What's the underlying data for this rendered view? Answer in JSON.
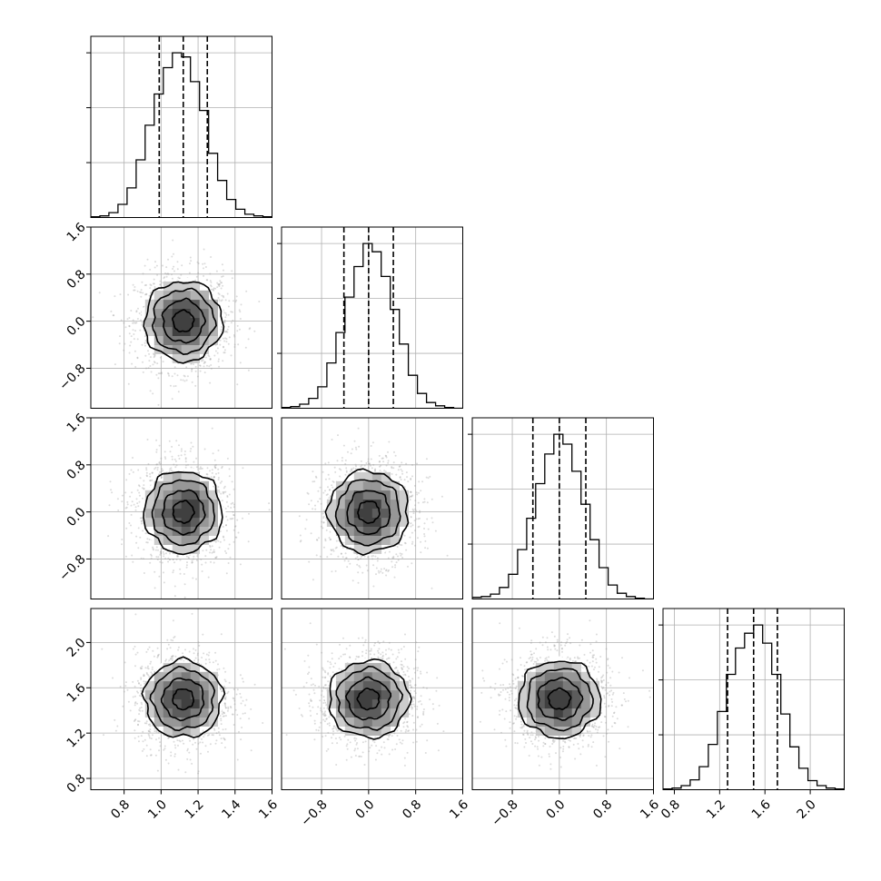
{
  "chart_data": {
    "type": "corner",
    "title": "",
    "parameters": [
      {
        "range": [
          0.62,
          1.6
        ],
        "ticks": [
          0.8,
          1.0,
          1.2,
          1.4,
          1.6
        ],
        "tick_labels": [
          "0.8",
          "1.0",
          "1.2",
          "1.4",
          "1.6"
        ],
        "quantiles": [
          0.99,
          1.12,
          1.25
        ],
        "mean": 1.12,
        "std": 0.13
      },
      {
        "range": [
          -1.48,
          1.6
        ],
        "ticks": [
          -0.8,
          0.0,
          0.8,
          1.6
        ],
        "tick_labels": [
          "−0.8",
          "0.0",
          "0.8",
          "1.6"
        ],
        "quantiles": [
          -0.42,
          0.0,
          0.42
        ],
        "mean": 0.0,
        "std": 0.42
      },
      {
        "range": [
          -1.48,
          1.6
        ],
        "ticks": [
          -0.8,
          0.0,
          0.8,
          1.6
        ],
        "tick_labels": [
          "−0.8",
          "0.0",
          "0.8",
          "1.6"
        ],
        "quantiles": [
          -0.45,
          0.0,
          0.45
        ],
        "mean": 0.0,
        "std": 0.43
      },
      {
        "range": [
          0.7,
          2.3
        ],
        "ticks": [
          0.8,
          1.2,
          1.6,
          2.0
        ],
        "tick_labels": [
          "0.8",
          "1.2",
          "1.6",
          "2.0"
        ],
        "quantiles": [
          1.27,
          1.5,
          1.71
        ],
        "mean": 1.5,
        "std": 0.21
      }
    ],
    "histograms": [
      {
        "param": 0,
        "bin_edges": [
          0.62,
          0.669,
          0.718,
          0.767,
          0.816,
          0.865,
          0.914,
          0.963,
          1.012,
          1.061,
          1.11,
          1.159,
          1.208,
          1.257,
          1.306,
          1.355,
          1.404,
          1.453,
          1.502,
          1.551,
          1.6
        ],
        "counts": [
          1,
          2,
          6,
          16,
          36,
          70,
          112,
          150,
          182,
          200,
          195,
          165,
          130,
          78,
          45,
          22,
          10,
          4,
          2,
          1
        ]
      },
      {
        "param": 1,
        "bin_edges": [
          -1.48,
          -1.326,
          -1.172,
          -1.018,
          -0.864,
          -0.71,
          -0.556,
          -0.402,
          -0.248,
          -0.094,
          0.06,
          0.214,
          0.368,
          0.522,
          0.676,
          0.83,
          0.984,
          1.138,
          1.292,
          1.446,
          1.6
        ],
        "counts": [
          1,
          2,
          5,
          12,
          26,
          55,
          92,
          135,
          172,
          200,
          190,
          160,
          120,
          78,
          40,
          18,
          7,
          3,
          1,
          0
        ]
      },
      {
        "param": 2,
        "bin_edges": [
          -1.48,
          -1.326,
          -1.172,
          -1.018,
          -0.864,
          -0.71,
          -0.556,
          -0.402,
          -0.248,
          -0.094,
          0.06,
          0.214,
          0.368,
          0.522,
          0.676,
          0.83,
          0.984,
          1.138,
          1.292,
          1.446,
          1.6
        ],
        "counts": [
          2,
          3,
          6,
          14,
          30,
          60,
          98,
          140,
          176,
          200,
          188,
          155,
          115,
          72,
          38,
          17,
          7,
          3,
          1,
          0
        ]
      },
      {
        "param": 3,
        "bin_edges": [
          0.7,
          0.78,
          0.86,
          0.94,
          1.02,
          1.1,
          1.18,
          1.26,
          1.34,
          1.42,
          1.5,
          1.58,
          1.66,
          1.74,
          1.82,
          1.9,
          1.98,
          2.06,
          2.14,
          2.22,
          2.3
        ],
        "counts": [
          1,
          2,
          5,
          12,
          28,
          55,
          95,
          140,
          172,
          190,
          200,
          178,
          140,
          92,
          52,
          26,
          11,
          5,
          2,
          1
        ]
      }
    ],
    "pairs": [
      {
        "x_param": 0,
        "y_param": 1,
        "levels": [
          0.43,
          0.86,
          1.28,
          1.62
        ],
        "center": [
          1.12,
          0.0
        ]
      },
      {
        "x_param": 0,
        "y_param": 2,
        "levels": [
          0.43,
          0.86,
          1.28,
          1.62
        ],
        "center": [
          1.12,
          0.0
        ]
      },
      {
        "x_param": 1,
        "y_param": 2,
        "levels": [
          0.43,
          0.86,
          1.28,
          1.62
        ],
        "center": [
          0.0,
          0.0
        ]
      },
      {
        "x_param": 0,
        "y_param": 3,
        "levels": [
          0.43,
          0.86,
          1.28,
          1.62
        ],
        "center": [
          1.12,
          1.5
        ]
      },
      {
        "x_param": 1,
        "y_param": 3,
        "levels": [
          0.43,
          0.86,
          1.28,
          1.62
        ],
        "center": [
          0.0,
          1.5
        ]
      },
      {
        "x_param": 2,
        "y_param": 3,
        "levels": [
          0.43,
          0.86,
          1.28,
          1.62
        ],
        "center": [
          0.0,
          1.5
        ]
      }
    ],
    "histogram_yticks": 3,
    "grid": true
  }
}
